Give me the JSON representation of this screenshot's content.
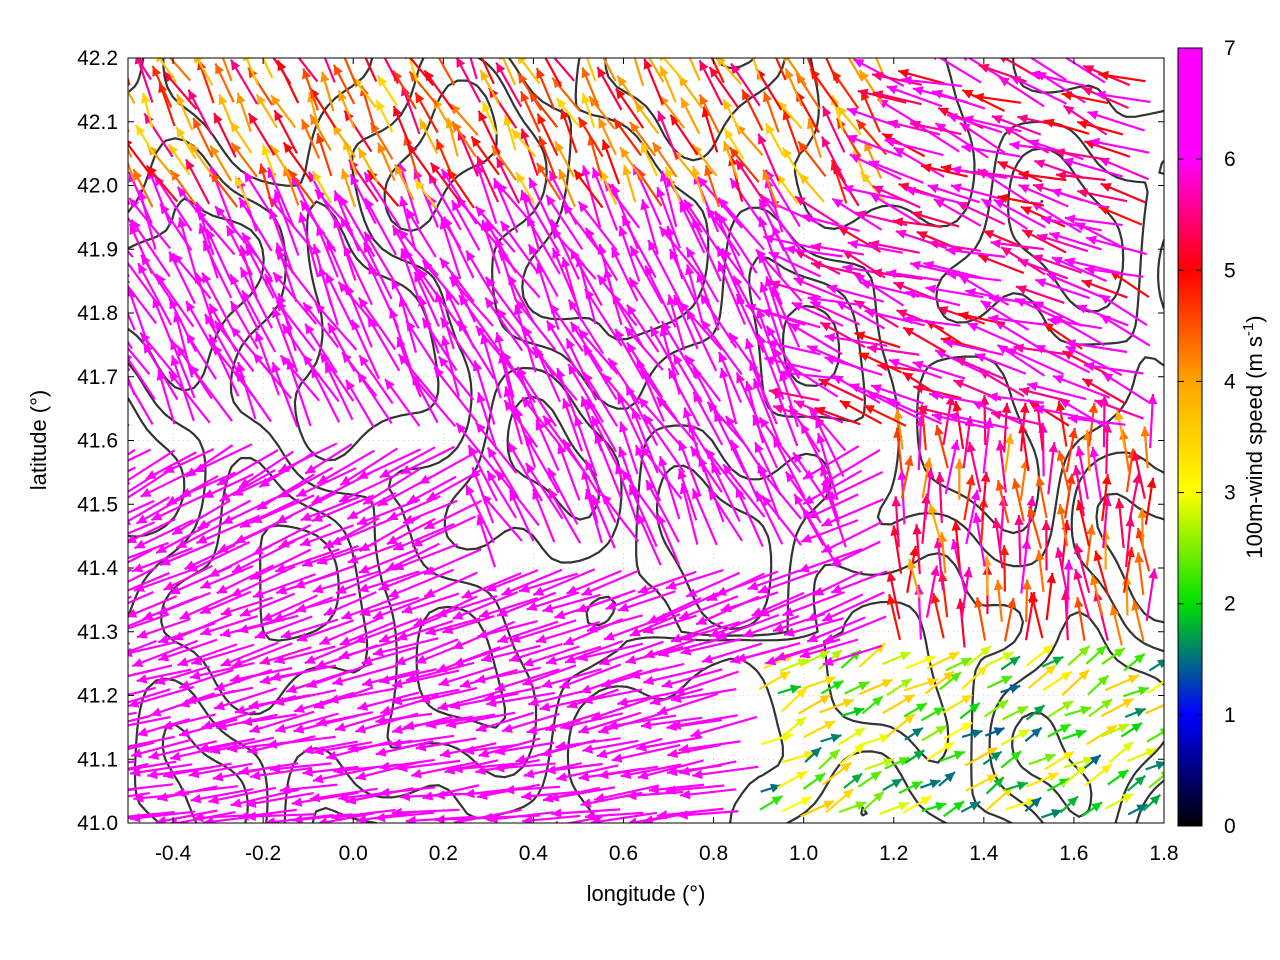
{
  "chart_data": {
    "type": "vector-field",
    "xlabel": "longitude (°)",
    "ylabel": "latitude (°)",
    "xlim": [
      -0.5,
      1.8
    ],
    "ylim": [
      41.0,
      42.2
    ],
    "xticks": [
      "-0.4",
      "-0.2",
      "0.0",
      "0.2",
      "0.4",
      "0.6",
      "0.8",
      "1.0",
      "1.2",
      "1.4",
      "1.6",
      "1.8"
    ],
    "xtick_values": [
      -0.4,
      -0.2,
      0.0,
      0.2,
      0.4,
      0.6,
      0.8,
      1.0,
      1.2,
      1.4,
      1.6,
      1.8
    ],
    "yticks": [
      "41.0",
      "41.1",
      "41.2",
      "41.3",
      "41.4",
      "41.5",
      "41.6",
      "41.7",
      "41.8",
      "41.9",
      "42.0",
      "42.1",
      "42.2"
    ],
    "ytick_values": [
      41.0,
      41.1,
      41.2,
      41.3,
      41.4,
      41.5,
      41.6,
      41.7,
      41.8,
      41.9,
      42.0,
      42.1,
      42.2
    ],
    "grid": true,
    "colorbar": {
      "label_main": "100m-wind speed (m s",
      "label_sup": "-1",
      "label_close": ")",
      "range": [
        0,
        7
      ],
      "ticks": [
        "0",
        "1",
        "2",
        "3",
        "4",
        "5",
        "6",
        "7"
      ],
      "tick_values": [
        0,
        1,
        2,
        3,
        4,
        5,
        6,
        7
      ],
      "colors": [
        "#000000",
        "#0000ff",
        "#00e000",
        "#ffff00",
        "#ffa500",
        "#ff0000",
        "#ff00ff"
      ]
    },
    "contour_color": "#333333",
    "wind_regimes": [
      {
        "region": "south-west",
        "lon": [
          -0.5,
          0.8
        ],
        "lat": [
          41.0,
          41.6
        ],
        "direction": "westward",
        "speed": 7
      },
      {
        "region": "central",
        "lon": [
          0.3,
          1.1
        ],
        "lat": [
          41.4,
          42.0
        ],
        "direction": "north-west",
        "speed": 7
      },
      {
        "region": "north-east",
        "lon": [
          1.0,
          1.8
        ],
        "lat": [
          41.6,
          42.2
        ],
        "direction": "west-north-west",
        "speed": 6
      },
      {
        "region": "north",
        "lon": [
          -0.5,
          1.2
        ],
        "lat": [
          41.95,
          42.2
        ],
        "direction": "north-west",
        "speed": 4.5
      },
      {
        "region": "east-middle",
        "lon": [
          1.2,
          1.8
        ],
        "lat": [
          41.25,
          41.6
        ],
        "direction": "north",
        "speed": 5
      },
      {
        "region": "south-east",
        "lon": [
          0.9,
          1.8
        ],
        "lat": [
          41.0,
          41.25
        ],
        "direction": "north-east",
        "speed": 2.5
      }
    ]
  }
}
